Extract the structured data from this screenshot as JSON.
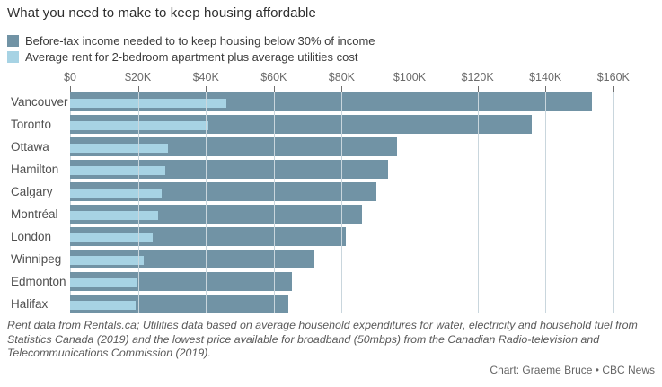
{
  "title": "What you need to make to keep housing affordable",
  "legend": {
    "items": [
      {
        "id": "income",
        "label": "Before-tax income needed to to keep housing below 30% of income",
        "color": "#7193a5"
      },
      {
        "id": "rent",
        "label": "Average rent for 2-bedroom apartment plus average utilities cost",
        "color": "#a7d3e4"
      }
    ]
  },
  "chart_data": {
    "type": "bar",
    "orientation": "horizontal",
    "style": "bullet-overlay",
    "title": "What you need to make to keep housing affordable",
    "unit": "thousands of dollars (CAD)",
    "categories": [
      "Vancouver",
      "Toronto",
      "Ottawa",
      "Hamilton",
      "Calgary",
      "Montréal",
      "London",
      "Winnipeg",
      "Edmonton",
      "Halifax"
    ],
    "series": [
      {
        "name": "Before-tax income needed to to keep housing below 30% of income",
        "color": "#7193a5",
        "values_k": [
          153.6,
          136.0,
          96.2,
          93.6,
          90.3,
          86.0,
          81.2,
          71.9,
          65.2,
          64.4
        ]
      },
      {
        "name": "Average rent for 2-bedroom apartment plus average utilities cost",
        "color": "#a7d3e4",
        "values_k": [
          46.1,
          40.8,
          28.9,
          28.1,
          27.1,
          25.8,
          24.4,
          21.6,
          19.6,
          19.3
        ]
      }
    ],
    "x_axis": {
      "tick_labels": [
        "$0",
        "$20K",
        "$40K",
        "$60K",
        "$80K",
        "$100K",
        "$120K",
        "$140K",
        "$160K"
      ],
      "tick_values_k": [
        0,
        20,
        40,
        60,
        80,
        100,
        120,
        140,
        160
      ],
      "range_k": [
        0,
        160
      ],
      "grid": true
    },
    "legend_position": "top-left"
  },
  "footnote": "Rent data from Rentals.ca; Utilities data based on average household expenditures for water, electricity and household fuel from Statistics Canada (2019) and the lowest price available for broadband (50mbps) from the Canadian Radio-television and Telecommunications Commission (2019).",
  "credit": "Chart: Graeme Bruce • CBC News"
}
